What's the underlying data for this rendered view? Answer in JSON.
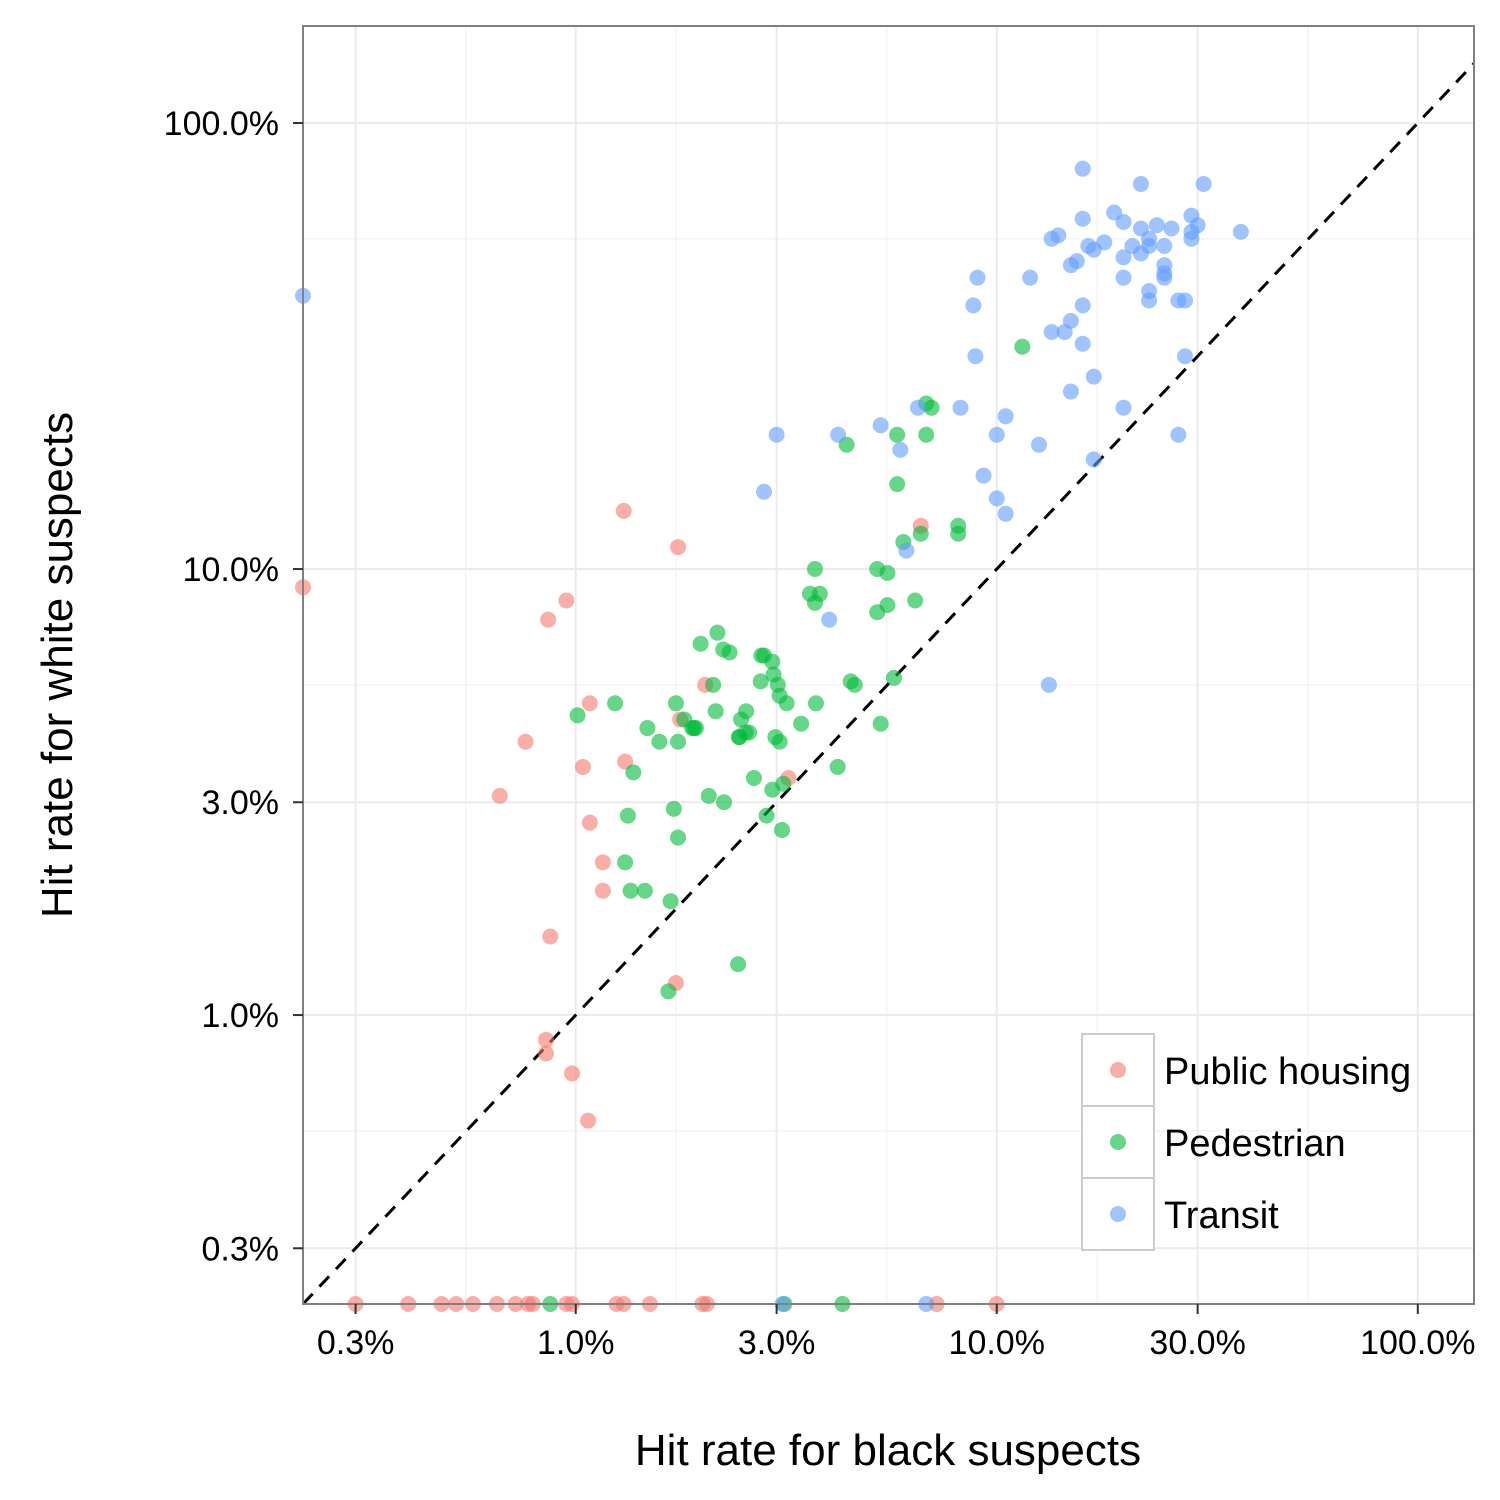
{
  "chart_data": {
    "type": "scatter",
    "xlabel": "Hit rate for black suspects",
    "ylabel": "Hit rate for white suspects",
    "x_scale": "log",
    "y_scale": "log",
    "xlim": [
      0.00225,
      1.36
    ],
    "ylim": [
      0.00225,
      1.65
    ],
    "x_ticks": [
      0.003,
      0.01,
      0.03,
      0.1,
      0.3,
      1.0
    ],
    "x_tick_labels": [
      "0.3%",
      "1.0%",
      "3.0%",
      "10.0%",
      "30.0%",
      "100.0%"
    ],
    "y_ticks": [
      0.003,
      0.01,
      0.03,
      0.1,
      1.0
    ],
    "y_tick_labels": [
      "0.3%",
      "1.0%",
      "3.0%",
      "10.0%",
      "100.0%"
    ],
    "y_minor_ticks": [
      0.0055,
      0.055,
      0.55
    ],
    "reference_line": "y = x, dashed black",
    "grid": true,
    "legend_position": "bottom-right",
    "series": [
      {
        "name": "Public housing",
        "color": "#F8766D",
        "points": [
          [
            0.00225,
            0.091
          ],
          [
            0.013,
            0.135
          ],
          [
            0.0175,
            0.112
          ],
          [
            0.0095,
            0.085
          ],
          [
            0.0086,
            0.077
          ],
          [
            0.0076,
            0.041
          ],
          [
            0.0066,
            0.031
          ],
          [
            0.0108,
            0.05
          ],
          [
            0.0104,
            0.036
          ],
          [
            0.0131,
            0.037
          ],
          [
            0.0108,
            0.027
          ],
          [
            0.0116,
            0.022
          ],
          [
            0.0116,
            0.019
          ],
          [
            0.0087,
            0.015
          ],
          [
            0.0203,
            0.055
          ],
          [
            0.0177,
            0.046
          ],
          [
            0.0173,
            0.0118
          ],
          [
            0.032,
            0.034
          ],
          [
            0.066,
            0.125
          ],
          [
            0.0085,
            0.0088
          ],
          [
            0.0085,
            0.0082
          ],
          [
            0.0098,
            0.0074
          ],
          [
            0.0107,
            0.0058
          ],
          [
            0.003,
            0.00225
          ],
          [
            0.004,
            0.00225
          ],
          [
            0.0048,
            0.00225
          ],
          [
            0.0052,
            0.00225
          ],
          [
            0.0057,
            0.00225
          ],
          [
            0.0065,
            0.00225
          ],
          [
            0.0072,
            0.00225
          ],
          [
            0.0077,
            0.00225
          ],
          [
            0.0079,
            0.00225
          ],
          [
            0.0095,
            0.00225
          ],
          [
            0.0098,
            0.00225
          ],
          [
            0.0125,
            0.00225
          ],
          [
            0.013,
            0.00225
          ],
          [
            0.015,
            0.00225
          ],
          [
            0.02,
            0.00225
          ],
          [
            0.0205,
            0.00225
          ],
          [
            0.072,
            0.00225
          ],
          [
            0.1,
            0.00225
          ]
        ]
      },
      {
        "name": "Pedestrian",
        "color": "#00BA38",
        "points": [
          [
            0.115,
            0.315
          ],
          [
            0.07,
            0.23
          ],
          [
            0.068,
            0.235
          ],
          [
            0.044,
            0.19
          ],
          [
            0.068,
            0.2
          ],
          [
            0.058,
            0.2
          ],
          [
            0.058,
            0.155
          ],
          [
            0.06,
            0.115
          ],
          [
            0.066,
            0.12
          ],
          [
            0.081,
            0.125
          ],
          [
            0.081,
            0.12
          ],
          [
            0.052,
            0.1
          ],
          [
            0.055,
            0.098
          ],
          [
            0.037,
            0.1
          ],
          [
            0.038,
            0.088
          ],
          [
            0.036,
            0.088
          ],
          [
            0.037,
            0.084
          ],
          [
            0.052,
            0.08
          ],
          [
            0.055,
            0.083
          ],
          [
            0.064,
            0.085
          ],
          [
            0.0217,
            0.072
          ],
          [
            0.0198,
            0.068
          ],
          [
            0.0224,
            0.066
          ],
          [
            0.0232,
            0.065
          ],
          [
            0.0276,
            0.064
          ],
          [
            0.028,
            0.064
          ],
          [
            0.0293,
            0.062
          ],
          [
            0.0295,
            0.058
          ],
          [
            0.0275,
            0.056
          ],
          [
            0.0302,
            0.055
          ],
          [
            0.0305,
            0.052
          ],
          [
            0.0317,
            0.05
          ],
          [
            0.0254,
            0.048
          ],
          [
            0.0212,
            0.055
          ],
          [
            0.0173,
            0.05
          ],
          [
            0.0215,
            0.048
          ],
          [
            0.0181,
            0.046
          ],
          [
            0.0189,
            0.044
          ],
          [
            0.0191,
            0.044
          ],
          [
            0.0193,
            0.044
          ],
          [
            0.0124,
            0.05
          ],
          [
            0.0101,
            0.047
          ],
          [
            0.0247,
            0.046
          ],
          [
            0.0253,
            0.043
          ],
          [
            0.0244,
            0.042
          ],
          [
            0.0258,
            0.043
          ],
          [
            0.0245,
            0.042
          ],
          [
            0.0298,
            0.042
          ],
          [
            0.0305,
            0.041
          ],
          [
            0.0158,
            0.041
          ],
          [
            0.0175,
            0.041
          ],
          [
            0.0148,
            0.044
          ],
          [
            0.0343,
            0.045
          ],
          [
            0.0372,
            0.05
          ],
          [
            0.045,
            0.056
          ],
          [
            0.046,
            0.055
          ],
          [
            0.057,
            0.057
          ],
          [
            0.053,
            0.045
          ],
          [
            0.0137,
            0.035
          ],
          [
            0.0265,
            0.034
          ],
          [
            0.0293,
            0.032
          ],
          [
            0.0419,
            0.036
          ],
          [
            0.0311,
            0.033
          ],
          [
            0.0207,
            0.031
          ],
          [
            0.0225,
            0.03
          ],
          [
            0.0171,
            0.029
          ],
          [
            0.0133,
            0.028
          ],
          [
            0.0284,
            0.028
          ],
          [
            0.0309,
            0.026
          ],
          [
            0.0175,
            0.025
          ],
          [
            0.0131,
            0.022
          ],
          [
            0.0135,
            0.019
          ],
          [
            0.0146,
            0.019
          ],
          [
            0.0168,
            0.018
          ],
          [
            0.0243,
            0.013
          ],
          [
            0.0166,
            0.0113
          ],
          [
            0.0087,
            0.00225
          ],
          [
            0.0313,
            0.00225
          ],
          [
            0.043,
            0.00225
          ]
        ]
      },
      {
        "name": "Transit",
        "color": "#619CFF",
        "points": [
          [
            0.00225,
            0.41
          ],
          [
            0.16,
            0.79
          ],
          [
            0.22,
            0.73
          ],
          [
            0.31,
            0.73
          ],
          [
            0.19,
            0.63
          ],
          [
            0.16,
            0.61
          ],
          [
            0.2,
            0.6
          ],
          [
            0.22,
            0.58
          ],
          [
            0.24,
            0.59
          ],
          [
            0.26,
            0.58
          ],
          [
            0.29,
            0.62
          ],
          [
            0.3,
            0.59
          ],
          [
            0.38,
            0.57
          ],
          [
            0.14,
            0.56
          ],
          [
            0.135,
            0.55
          ],
          [
            0.29,
            0.57
          ],
          [
            0.23,
            0.55
          ],
          [
            0.29,
            0.55
          ],
          [
            0.18,
            0.54
          ],
          [
            0.165,
            0.53
          ],
          [
            0.21,
            0.53
          ],
          [
            0.23,
            0.53
          ],
          [
            0.25,
            0.53
          ],
          [
            0.17,
            0.52
          ],
          [
            0.2,
            0.5
          ],
          [
            0.22,
            0.51
          ],
          [
            0.155,
            0.49
          ],
          [
            0.15,
            0.48
          ],
          [
            0.25,
            0.48
          ],
          [
            0.25,
            0.46
          ],
          [
            0.09,
            0.45
          ],
          [
            0.12,
            0.45
          ],
          [
            0.2,
            0.45
          ],
          [
            0.25,
            0.45
          ],
          [
            0.23,
            0.42
          ],
          [
            0.23,
            0.4
          ],
          [
            0.27,
            0.4
          ],
          [
            0.28,
            0.4
          ],
          [
            0.088,
            0.39
          ],
          [
            0.16,
            0.39
          ],
          [
            0.15,
            0.36
          ],
          [
            0.135,
            0.34
          ],
          [
            0.145,
            0.34
          ],
          [
            0.16,
            0.32
          ],
          [
            0.089,
            0.3
          ],
          [
            0.28,
            0.3
          ],
          [
            0.17,
            0.27
          ],
          [
            0.15,
            0.25
          ],
          [
            0.065,
            0.23
          ],
          [
            0.082,
            0.23
          ],
          [
            0.105,
            0.22
          ],
          [
            0.2,
            0.23
          ],
          [
            0.03,
            0.2
          ],
          [
            0.042,
            0.2
          ],
          [
            0.053,
            0.21
          ],
          [
            0.1,
            0.2
          ],
          [
            0.126,
            0.19
          ],
          [
            0.27,
            0.2
          ],
          [
            0.059,
            0.185
          ],
          [
            0.17,
            0.176
          ],
          [
            0.093,
            0.162
          ],
          [
            0.028,
            0.149
          ],
          [
            0.1,
            0.144
          ],
          [
            0.105,
            0.133
          ],
          [
            0.061,
            0.11
          ],
          [
            0.04,
            0.077
          ],
          [
            0.133,
            0.055
          ],
          [
            0.031,
            0.00225
          ],
          [
            0.068,
            0.00225
          ]
        ]
      }
    ]
  }
}
